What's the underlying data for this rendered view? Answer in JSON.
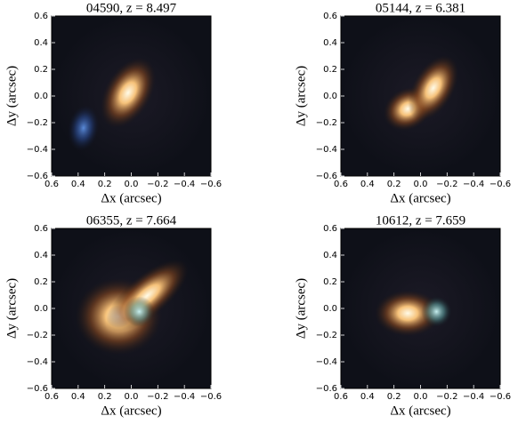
{
  "chart_data": [
    {
      "type": "image",
      "title": "04590, z = 8.497",
      "xlabel": "Δx (arcsec)",
      "ylabel": "Δy (arcsec)",
      "xlim": [
        0.6,
        -0.6
      ],
      "ylim": [
        -0.6,
        0.6
      ],
      "xticks": [
        0.6,
        0.4,
        0.2,
        {
          "value": 0,
          "label": "0.0"
        },
        {
          "value": -0.2,
          "label": "−0.2"
        },
        {
          "value": -0.4,
          "label": "−0.4"
        },
        {
          "value": -0.6,
          "label": "−0.6"
        }
      ],
      "yticks": [
        {
          "value": -0.6,
          "label": "−0.6"
        },
        {
          "value": -0.4,
          "label": "−0.4"
        },
        {
          "value": -0.2,
          "label": "−0.2"
        },
        {
          "value": 0,
          "label": "0.0"
        },
        0.2,
        0.4,
        0.6
      ]
    },
    {
      "type": "image",
      "title": "05144, z = 6.381",
      "xlabel": "Δx (arcsec)",
      "ylabel": "Δy (arcsec)",
      "xlim": [
        0.6,
        -0.6
      ],
      "ylim": [
        -0.6,
        0.6
      ],
      "xticks": [
        0.6,
        0.4,
        0.2,
        {
          "value": 0,
          "label": "0.0"
        },
        {
          "value": -0.2,
          "label": "−0.2"
        },
        {
          "value": -0.4,
          "label": "−0.4"
        },
        {
          "value": -0.6,
          "label": "−0.6"
        }
      ],
      "yticks": [
        {
          "value": -0.6,
          "label": "−0.6"
        },
        {
          "value": -0.4,
          "label": "−0.4"
        },
        {
          "value": -0.2,
          "label": "−0.2"
        },
        {
          "value": 0,
          "label": "0.0"
        },
        0.2,
        0.4,
        0.6
      ]
    },
    {
      "type": "image",
      "title": "06355, z = 7.664",
      "xlabel": "Δx (arcsec)",
      "ylabel": "Δy (arcsec)",
      "xlim": [
        0.6,
        -0.6
      ],
      "ylim": [
        -0.6,
        0.6
      ],
      "xticks": [
        0.6,
        0.4,
        0.2,
        {
          "value": 0,
          "label": "0.0"
        },
        {
          "value": -0.2,
          "label": "−0.2"
        },
        {
          "value": -0.4,
          "label": "−0.4"
        },
        {
          "value": -0.6,
          "label": "−0.6"
        }
      ],
      "yticks": [
        {
          "value": -0.6,
          "label": "−0.6"
        },
        {
          "value": -0.4,
          "label": "−0.4"
        },
        {
          "value": -0.2,
          "label": "−0.2"
        },
        {
          "value": 0,
          "label": "0.0"
        },
        0.2,
        0.4,
        0.6
      ]
    },
    {
      "type": "image",
      "title": "10612, z = 7.659",
      "xlabel": "Δx (arcsec)",
      "ylabel": "Δy (arcsec)",
      "xlim": [
        0.6,
        -0.6
      ],
      "ylim": [
        -0.6,
        0.6
      ],
      "xticks": [
        0.6,
        0.4,
        0.2,
        {
          "value": 0,
          "label": "0.0"
        },
        {
          "value": -0.2,
          "label": "−0.2"
        },
        {
          "value": -0.4,
          "label": "−0.4"
        },
        {
          "value": -0.6,
          "label": "−0.6"
        }
      ],
      "yticks": [
        {
          "value": -0.6,
          "label": "−0.6"
        },
        {
          "value": -0.4,
          "label": "−0.4"
        },
        {
          "value": -0.2,
          "label": "−0.2"
        },
        {
          "value": 0,
          "label": "0.0"
        },
        0.2,
        0.4,
        0.6
      ]
    }
  ]
}
